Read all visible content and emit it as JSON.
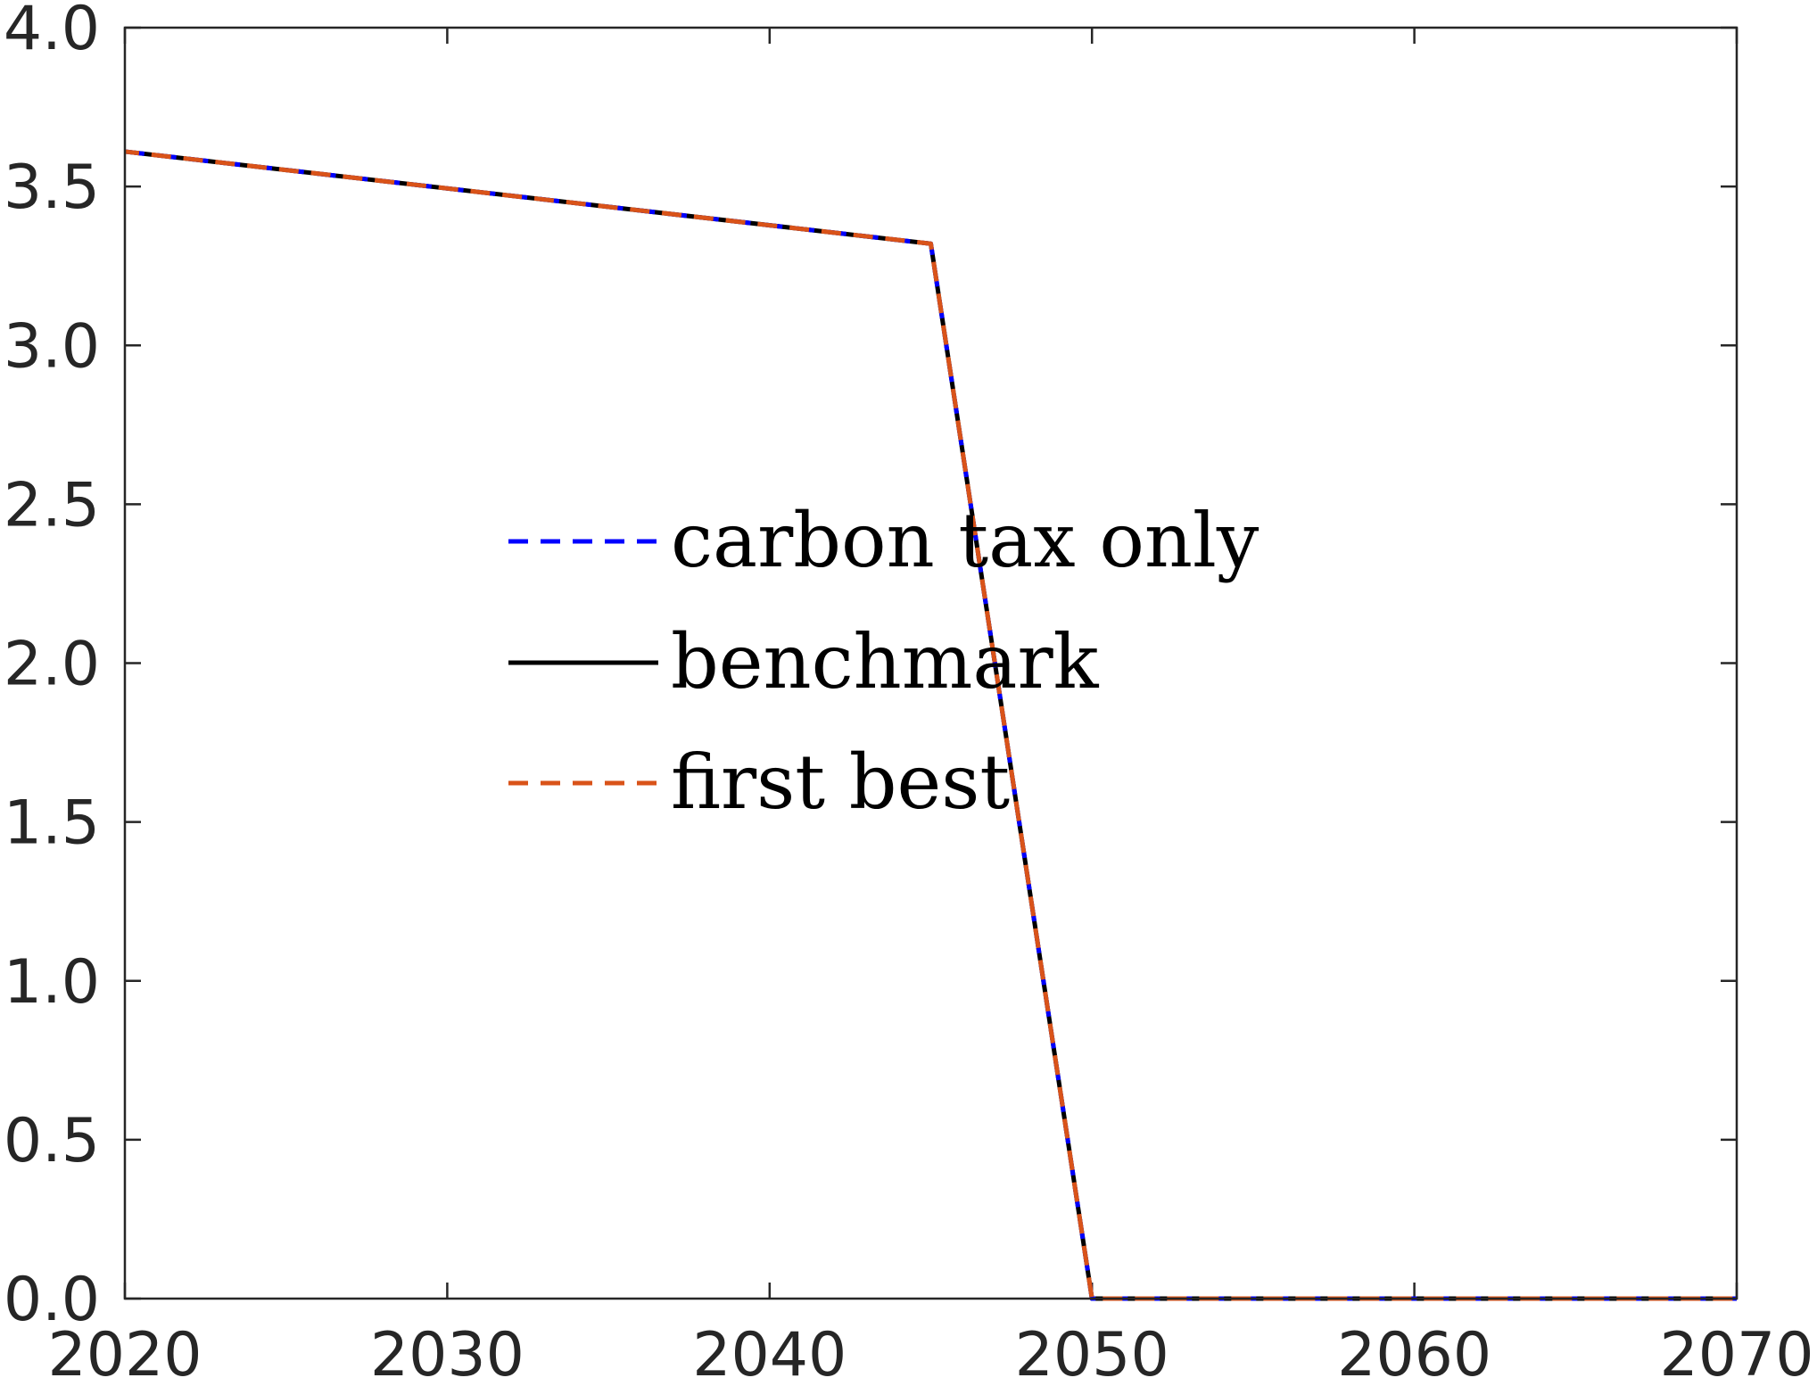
{
  "chart_data": {
    "type": "line",
    "title": "",
    "xlabel": "",
    "ylabel": "",
    "xlim": [
      2020,
      2070
    ],
    "ylim": [
      0,
      4
    ],
    "xticks": [
      2020,
      2030,
      2040,
      2050,
      2060,
      2070
    ],
    "xtick_labels": [
      "2020",
      "2030",
      "2040",
      "2050",
      "2060",
      "2070"
    ],
    "yticks": [
      0,
      0.5,
      1,
      1.5,
      2,
      2.5,
      3,
      3.5,
      4
    ],
    "ytick_labels": [
      "0.0",
      "0.5",
      "1.0",
      "1.5",
      "2.0",
      "2.5",
      "3.0",
      "3.5",
      "4.0"
    ],
    "grid": false,
    "legend_position": "center",
    "series": [
      {
        "name": "carbon tax only",
        "color": "#0000ff",
        "style": "dashed",
        "x": [
          2020,
          2045,
          2050,
          2070
        ],
        "y": [
          3.61,
          3.32,
          0.0,
          0.0
        ]
      },
      {
        "name": "benchmark",
        "color": "#000000",
        "style": "solid",
        "x": [
          2020,
          2045,
          2050,
          2070
        ],
        "y": [
          3.61,
          3.32,
          0.0,
          0.0
        ]
      },
      {
        "name": "first best",
        "color": "#d95319",
        "style": "dashed",
        "x": [
          2020,
          2045,
          2050,
          2070
        ],
        "y": [
          3.61,
          3.32,
          0.0,
          0.0
        ]
      }
    ]
  }
}
